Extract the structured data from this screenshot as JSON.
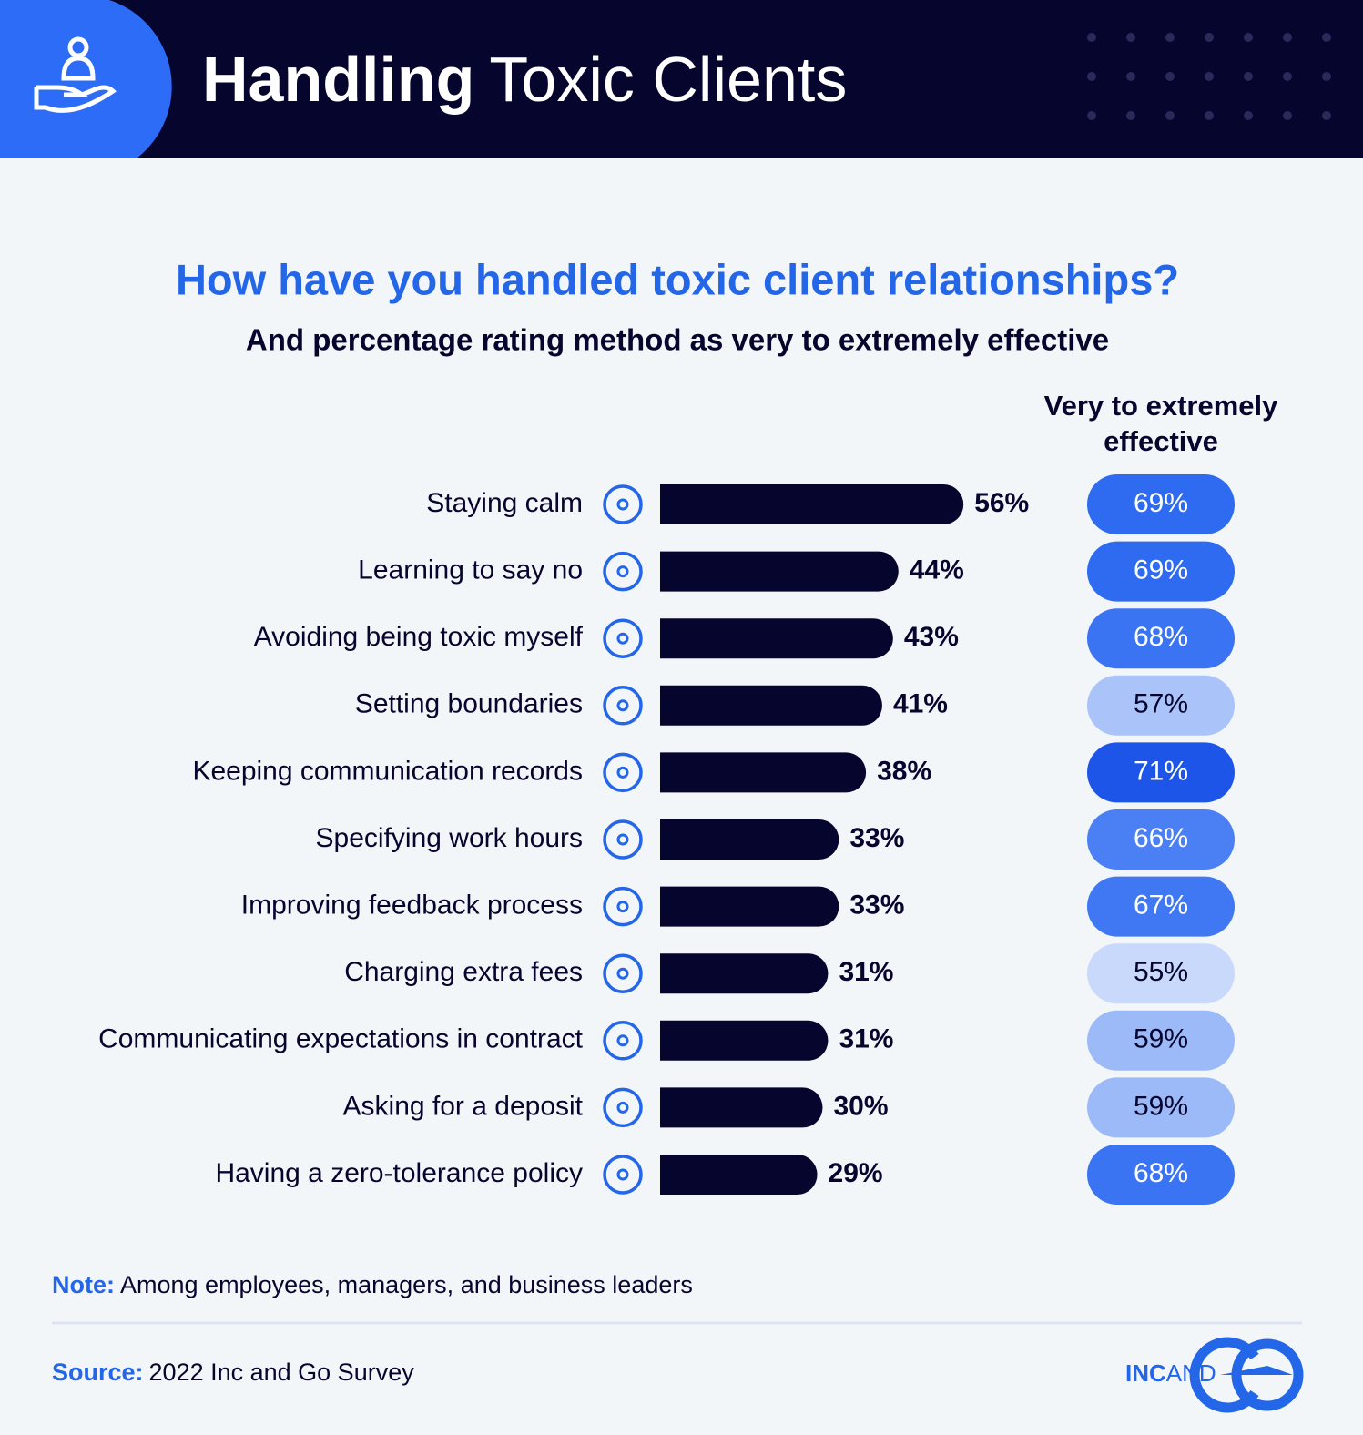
{
  "header": {
    "title_bold": "Handling",
    "title_light": "Toxic Clients"
  },
  "chart_data": {
    "type": "bar",
    "orientation": "horizontal",
    "title": "How have you handled toxic client relationships?",
    "subtitle": "And percentage rating method as very to extremely effective",
    "categories": [
      "Staying calm",
      "Learning to say no",
      "Avoiding being toxic myself",
      "Setting boundaries",
      "Keeping communication records",
      "Specifying work hours",
      "Improving feedback process",
      "Charging extra fees",
      "Communicating expectations in contract",
      "Asking for a deposit",
      "Having a zero-tolerance policy"
    ],
    "values": [
      56,
      44,
      43,
      41,
      38,
      33,
      33,
      31,
      31,
      30,
      29
    ],
    "value_labels": [
      "56%",
      "44%",
      "43%",
      "41%",
      "38%",
      "33%",
      "33%",
      "31%",
      "31%",
      "30%",
      "29%"
    ],
    "color": "#06052e",
    "effective": {
      "title": "Very to extremely effective",
      "values": [
        69,
        69,
        68,
        57,
        71,
        66,
        67,
        55,
        59,
        59,
        68
      ],
      "value_labels": [
        "69%",
        "69%",
        "68%",
        "57%",
        "71%",
        "66%",
        "67%",
        "55%",
        "59%",
        "59%",
        "68%"
      ],
      "colors": [
        "#2f6bf0",
        "#2f6bf0",
        "#3a74f2",
        "#aac4fa",
        "#1d55e8",
        "#4a80f3",
        "#3f78f2",
        "#c9d9fc",
        "#9cbaf8",
        "#9cbaf8",
        "#3a74f2"
      ]
    }
  },
  "footer": {
    "note_label": "Note:",
    "note": "Among employees, managers, and business leaders",
    "source_label": "Source:",
    "source": "2022 Inc and Go Survey",
    "logo": [
      "INC",
      "AND"
    ]
  }
}
